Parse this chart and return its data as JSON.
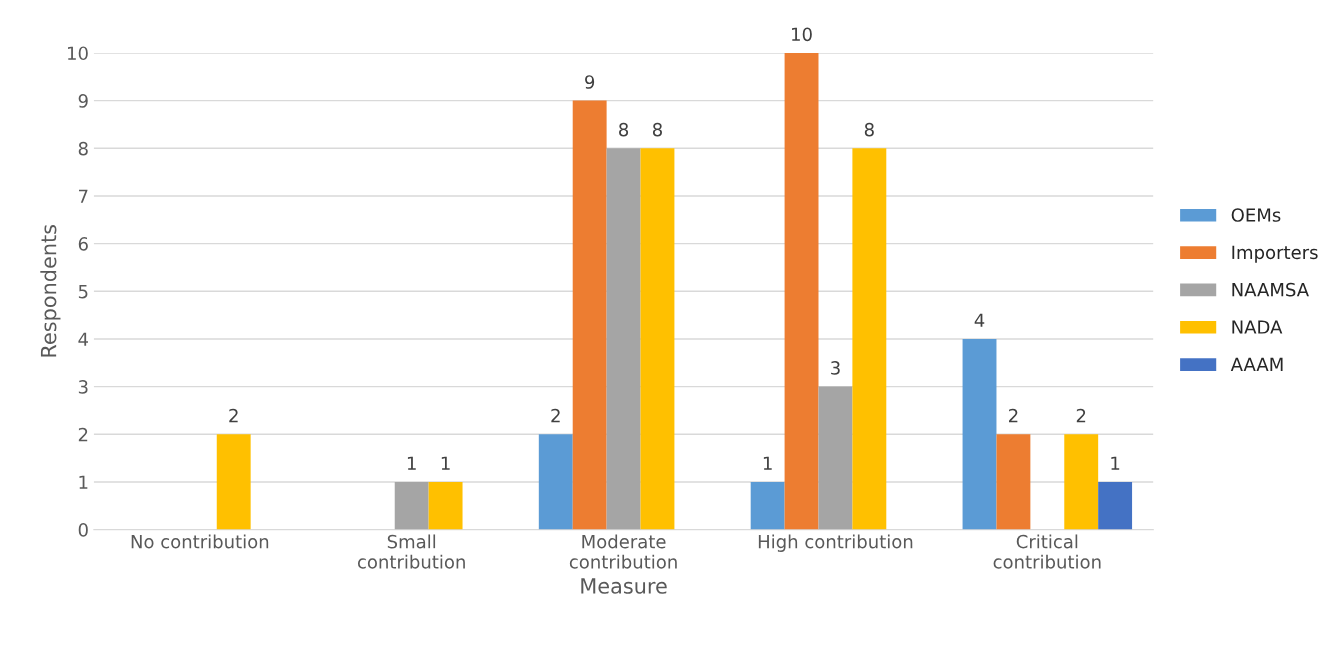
{
  "chart_data": {
    "type": "bar",
    "xlabel": "Measure",
    "ylabel": "Respondents",
    "categories": [
      "No contribution",
      "Small\ncontribution",
      "Moderate\ncontribution",
      "High contribution",
      "Critical\ncontribution"
    ],
    "series": [
      {
        "name": "OEMs",
        "color": "#5b9bd5",
        "values": [
          null,
          null,
          2,
          1,
          4
        ],
        "value_labels": [
          null,
          null,
          "2",
          "1",
          "4"
        ]
      },
      {
        "name": "Importers",
        "color": "#ed7d31",
        "values": [
          null,
          null,
          9,
          10,
          2
        ],
        "value_labels": [
          null,
          null,
          "9",
          "10",
          "2"
        ]
      },
      {
        "name": "NAAMSA",
        "color": "#a5a5a5",
        "values": [
          null,
          1,
          8,
          3,
          null
        ],
        "value_labels": [
          null,
          "1",
          "8",
          "3",
          null
        ]
      },
      {
        "name": "NADA",
        "color": "#ffc000",
        "values": [
          2,
          1,
          8,
          8,
          2
        ],
        "value_labels": [
          "2",
          "1",
          "8",
          "8",
          "2"
        ]
      },
      {
        "name": "AAAM",
        "color": "#4472c4",
        "values": [
          null,
          null,
          null,
          null,
          1
        ],
        "value_labels": [
          null,
          null,
          null,
          null,
          "1"
        ]
      }
    ],
    "ylim": [
      0,
      10
    ],
    "yticks": [
      0,
      1,
      2,
      3,
      4,
      5,
      6,
      7,
      8,
      9,
      10
    ],
    "grid": "y",
    "legend": "right"
  }
}
